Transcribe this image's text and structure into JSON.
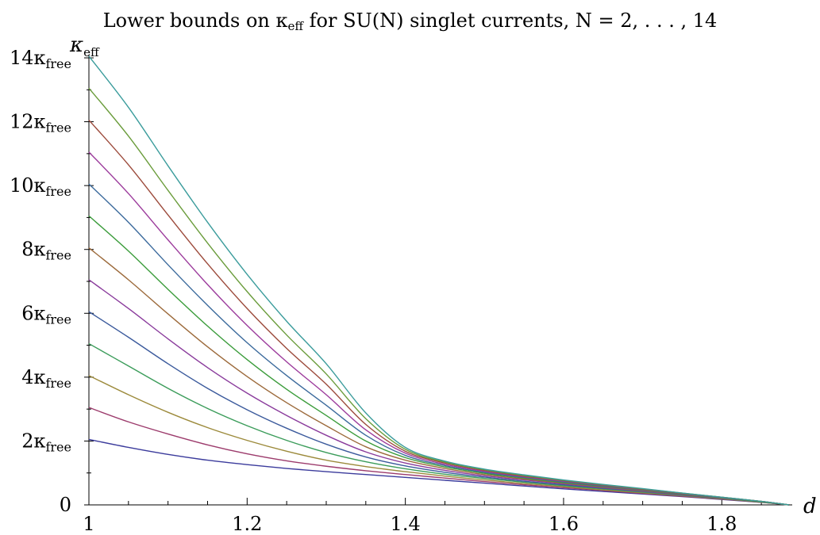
{
  "chart_data": {
    "type": "line",
    "title": {
      "main": "Lower bounds on κ",
      "main_sub": "eff",
      "tail": " for SU(N) singlet currents, N = 2, . . . , 14"
    },
    "ylabel": {
      "symbol": "κ",
      "sub": "eff"
    },
    "xlabel": "d",
    "xlim": [
      1.0,
      1.885
    ],
    "ylim": [
      0,
      14
    ],
    "x_ticks": [
      {
        "value": 1.0,
        "label": "1"
      },
      {
        "value": 1.2,
        "label": "1.2"
      },
      {
        "value": 1.4,
        "label": "1.4"
      },
      {
        "value": 1.6,
        "label": "1.6"
      },
      {
        "value": 1.8,
        "label": "1.8"
      }
    ],
    "y_ticks": [
      {
        "value": 0,
        "label": "0",
        "sub": ""
      },
      {
        "value": 2,
        "label": "2κ",
        "sub": "free"
      },
      {
        "value": 4,
        "label": "4κ",
        "sub": "free"
      },
      {
        "value": 6,
        "label": "6κ",
        "sub": "free"
      },
      {
        "value": 8,
        "label": "8κ",
        "sub": "free"
      },
      {
        "value": 10,
        "label": "10κ",
        "sub": "free"
      },
      {
        "value": 12,
        "label": "12κ",
        "sub": "free"
      },
      {
        "value": 14,
        "label": "14κ",
        "sub": "free"
      }
    ],
    "x": [
      1.0,
      1.05,
      1.1,
      1.15,
      1.2,
      1.25,
      1.3,
      1.35,
      1.4,
      1.45,
      1.5,
      1.55,
      1.6,
      1.65,
      1.7,
      1.75,
      1.8,
      1.85,
      1.885
    ],
    "series": [
      {
        "color": "#3b3b9c",
        "values": [
          2.05,
          1.8,
          1.58,
          1.4,
          1.26,
          1.14,
          1.04,
          0.95,
          0.86,
          0.77,
          0.68,
          0.59,
          0.5,
          0.42,
          0.34,
          0.26,
          0.17,
          0.08,
          0.0
        ]
      },
      {
        "color": "#9c3b6c",
        "values": [
          3.05,
          2.6,
          2.22,
          1.88,
          1.6,
          1.38,
          1.21,
          1.07,
          0.95,
          0.84,
          0.73,
          0.63,
          0.54,
          0.45,
          0.36,
          0.27,
          0.18,
          0.08,
          0.0
        ]
      },
      {
        "color": "#9c8a3b",
        "values": [
          4.05,
          3.45,
          2.9,
          2.42,
          2.02,
          1.68,
          1.4,
          1.2,
          1.04,
          0.9,
          0.78,
          0.67,
          0.57,
          0.47,
          0.38,
          0.29,
          0.19,
          0.09,
          0.0
        ]
      },
      {
        "color": "#3b9c5a",
        "values": [
          5.05,
          4.35,
          3.65,
          3.02,
          2.48,
          2.02,
          1.64,
          1.35,
          1.13,
          0.96,
          0.83,
          0.71,
          0.6,
          0.5,
          0.4,
          0.3,
          0.2,
          0.09,
          0.0
        ]
      },
      {
        "color": "#3b5a9c",
        "values": [
          6.05,
          5.25,
          4.42,
          3.65,
          2.98,
          2.4,
          1.9,
          1.5,
          1.22,
          1.02,
          0.87,
          0.74,
          0.63,
          0.52,
          0.42,
          0.31,
          0.21,
          0.1,
          0.0
        ]
      },
      {
        "color": "#8a3b9c",
        "values": [
          7.05,
          6.15,
          5.2,
          4.3,
          3.5,
          2.8,
          2.18,
          1.66,
          1.31,
          1.08,
          0.91,
          0.78,
          0.66,
          0.54,
          0.43,
          0.32,
          0.21,
          0.1,
          0.0
        ]
      },
      {
        "color": "#9c6a3b",
        "values": [
          8.05,
          7.05,
          5.98,
          4.95,
          4.02,
          3.2,
          2.48,
          1.82,
          1.4,
          1.14,
          0.95,
          0.81,
          0.68,
          0.56,
          0.45,
          0.33,
          0.22,
          0.1,
          0.0
        ]
      },
      {
        "color": "#3b9c3b",
        "values": [
          9.05,
          7.95,
          6.75,
          5.6,
          4.55,
          3.62,
          2.8,
          2.0,
          1.48,
          1.19,
          0.99,
          0.84,
          0.7,
          0.58,
          0.46,
          0.34,
          0.22,
          0.1,
          0.0
        ]
      },
      {
        "color": "#3b6a9c",
        "values": [
          10.05,
          8.85,
          7.52,
          6.25,
          5.08,
          4.05,
          3.12,
          2.18,
          1.55,
          1.23,
          1.02,
          0.86,
          0.72,
          0.59,
          0.47,
          0.35,
          0.23,
          0.11,
          0.0
        ]
      },
      {
        "color": "#9c3b9c",
        "values": [
          11.05,
          9.75,
          8.3,
          6.9,
          5.62,
          4.48,
          3.45,
          2.35,
          1.62,
          1.27,
          1.05,
          0.88,
          0.74,
          0.61,
          0.48,
          0.36,
          0.23,
          0.11,
          0.0
        ]
      },
      {
        "color": "#9c4a3b",
        "values": [
          12.05,
          10.65,
          9.08,
          7.55,
          6.15,
          4.9,
          3.78,
          2.52,
          1.68,
          1.31,
          1.08,
          0.9,
          0.76,
          0.62,
          0.49,
          0.36,
          0.24,
          0.11,
          0.0
        ]
      },
      {
        "color": "#6a9c3b",
        "values": [
          13.05,
          11.55,
          9.85,
          8.2,
          6.68,
          5.32,
          4.1,
          2.7,
          1.74,
          1.34,
          1.1,
          0.92,
          0.77,
          0.63,
          0.5,
          0.37,
          0.24,
          0.11,
          0.0
        ]
      },
      {
        "color": "#3b9c9c",
        "values": [
          14.05,
          12.45,
          10.62,
          8.85,
          7.22,
          5.75,
          4.42,
          2.88,
          1.8,
          1.37,
          1.12,
          0.94,
          0.78,
          0.64,
          0.51,
          0.37,
          0.24,
          0.11,
          0.0
        ]
      }
    ],
    "grid": false,
    "legend": "none"
  }
}
